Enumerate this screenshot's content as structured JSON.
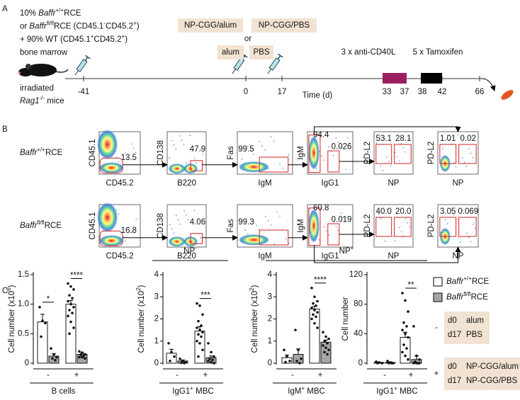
{
  "panel_a": {
    "label": "A",
    "donor_lines": [
      [
        {
          "t": "10% "
        },
        {
          "t": "Baffr",
          "i": true
        },
        {
          "t": "+/+",
          "sup": true
        },
        {
          "t": "RCE"
        }
      ],
      [
        {
          "t": "or "
        },
        {
          "t": "Baffr",
          "i": true
        },
        {
          "t": "fl/fl",
          "sup": true
        },
        {
          "t": "RCE (CD45.1"
        },
        {
          "t": "-",
          "sup": true
        },
        {
          "t": "CD45.2"
        },
        {
          "t": "+",
          "sup": true
        },
        {
          "t": ")"
        }
      ],
      [
        {
          "t": "+ 90% WT (CD45.1"
        },
        {
          "t": "+",
          "sup": true
        },
        {
          "t": "CD45.2"
        },
        {
          "t": "+",
          "sup": true
        },
        {
          "t": ")"
        }
      ],
      [
        {
          "t": "bone marrow"
        }
      ]
    ],
    "recipient_lines": [
      [
        {
          "t": "irradiated"
        }
      ],
      [
        {
          "t": "Rag1",
          "i": true
        },
        {
          "t": "-/-",
          "sup": true
        },
        {
          "t": " mice"
        }
      ]
    ],
    "immunizations": {
      "primary": [
        "NP-CGG/alum",
        "NP-CGG/PBS"
      ],
      "or": "or",
      "control": [
        "alum",
        "PBS"
      ]
    },
    "treatments": [
      "3 x anti-CD40L",
      "5 x Tamoxifen"
    ],
    "timeline": {
      "days": [
        -41,
        0,
        17,
        33,
        37,
        38,
        42,
        66
      ],
      "label": "Time (d)"
    }
  },
  "panel_b": {
    "label": "B",
    "rows": [
      {
        "name": [
          {
            "t": "Baffr",
            "i": true
          },
          {
            "t": "+/+",
            "sup": true
          },
          {
            "t": "RCE"
          }
        ],
        "plots": [
          {
            "y": "CD45.1",
            "x": "CD45.2",
            "gates": [
              "13.5"
            ]
          },
          {
            "y": "CD138",
            "x": "B220",
            "gates": [
              "47.9"
            ]
          },
          {
            "y": "Fas",
            "x": "IgM",
            "gates": [
              "99.5"
            ]
          },
          {
            "y": "IgM",
            "x": "IgG1",
            "gates": [
              "94.4",
              "0.026"
            ]
          },
          {
            "y": "PD-L2",
            "x": "NP",
            "gates": [
              "53.1",
              "28.1"
            ]
          },
          {
            "y": "PD-L2",
            "x": "NP",
            "gates": [
              "1.01",
              "0.02"
            ]
          }
        ]
      },
      {
        "name": [
          {
            "t": "Baffr",
            "i": true
          },
          {
            "t": "fl/fl",
            "sup": true
          },
          {
            "t": "RCE"
          }
        ],
        "plots": [
          {
            "y": "CD45.1",
            "x": "CD45.2",
            "gates": [
              "16.8"
            ]
          },
          {
            "y": "CD138",
            "x": "B220",
            "gates": [
              "4.06"
            ]
          },
          {
            "y": "Fas",
            "x": "IgM",
            "gates": [
              "99.3"
            ]
          },
          {
            "y": "IgM",
            "x": "IgG1",
            "gates": [
              "60.8",
              "0.019"
            ]
          },
          {
            "y": "PD-L2",
            "x": "NP",
            "gates": [
              "40.0",
              "20.0"
            ]
          },
          {
            "y": "PD-L2",
            "x": "NP",
            "gates": [
              "3.05",
              "0.069"
            ]
          }
        ]
      }
    ]
  },
  "panel_c": {
    "label": "C",
    "groups": [
      [
        {
          "t": "NP"
        },
        {
          "t": "-",
          "sup": true
        }
      ],
      [
        {
          "t": "NP"
        },
        {
          "t": "+",
          "sup": true
        }
      ]
    ],
    "legend": [
      {
        "label": [
          {
            "t": "Baffr",
            "i": true
          },
          {
            "t": "+/+",
            "sup": true
          },
          {
            "t": "RCE"
          }
        ],
        "color": "#ffffff"
      },
      {
        "label": [
          {
            "t": "Baffr",
            "i": true
          },
          {
            "t": "fl/fl",
            "sup": true
          },
          {
            "t": "RCE"
          }
        ],
        "color": "#a6a6a6"
      }
    ],
    "conditions": [
      {
        "sign": "-",
        "lines": [
          [
            "d0",
            "alum"
          ],
          [
            "d17",
            "PBS"
          ]
        ]
      },
      {
        "sign": "+",
        "lines": [
          [
            "d0",
            "NP-CGG/alum"
          ],
          [
            "d17",
            "NP-CGG/PBS"
          ]
        ]
      }
    ]
  },
  "chart_data": [
    {
      "type": "bar",
      "categories": [
        "-",
        "+"
      ],
      "xlabel": [
        {
          "t": "B cells"
        }
      ],
      "ylabel": [
        {
          "t": "Cell number (x10"
        },
        {
          "t": "6",
          "sup": true
        },
        {
          "t": ")"
        }
      ],
      "ylim": [
        0,
        1.5
      ],
      "yticks": [
        0,
        0.5,
        {
          "value": 1,
          "label": "1.0"
        },
        1.5
      ],
      "annotations": [
        "*",
        "****"
      ],
      "series": [
        {
          "color": "#ffffff",
          "values": [
            0.7,
            1.0
          ],
          "errors": [
            0.13,
            0.06
          ],
          "points": [
            [
              0.95,
              0.72,
              0.68,
              0.45
            ],
            [
              1.35,
              1.3,
              1.25,
              1.15,
              1.1,
              1.05,
              1.0,
              0.95,
              0.9,
              0.85,
              0.8,
              0.7,
              0.6,
              0.5
            ]
          ]
        },
        {
          "color": "#a6a6a6",
          "values": [
            0.12,
            0.15
          ],
          "errors": [
            0.04,
            0.02
          ],
          "points": [
            [
              0.25,
              0.15,
              0.1,
              0.08,
              0.05
            ],
            [
              0.2,
              0.18,
              0.15,
              0.14,
              0.12,
              0.1,
              0.1,
              0.08
            ]
          ]
        }
      ]
    },
    {
      "type": "bar",
      "categories": [
        "-",
        "+"
      ],
      "xlabel": [
        {
          "t": "IgG1"
        },
        {
          "t": "+",
          "sup": true
        },
        {
          "t": " MBC"
        }
      ],
      "ylabel": [
        {
          "t": "Cell number (x10"
        },
        {
          "t": "2",
          "sup": true
        },
        {
          "t": ")"
        }
      ],
      "ylim": [
        0,
        4
      ],
      "yticks": [
        0,
        1,
        2,
        3,
        4
      ],
      "annotations": [
        null,
        "***"
      ],
      "series": [
        {
          "color": "#ffffff",
          "values": [
            0.45,
            1.45
          ],
          "errors": [
            0.18,
            0.2
          ],
          "points": [
            [
              0.9,
              0.5,
              0.3,
              0.1
            ],
            [
              2.7,
              2.6,
              2.2,
              1.9,
              1.7,
              1.6,
              1.5,
              1.4,
              1.3,
              1.2,
              1.0,
              0.9,
              0.6,
              0.3
            ]
          ]
        },
        {
          "color": "#a6a6a6",
          "values": [
            0.1,
            0.25
          ],
          "errors": [
            0.05,
            0.08
          ],
          "points": [
            [
              0.2,
              0.1,
              0.05,
              0.02,
              0
            ],
            [
              0.9,
              0.5,
              0.3,
              0.2,
              0.15,
              0.1,
              0.05,
              0
            ]
          ]
        }
      ]
    },
    {
      "type": "bar",
      "categories": [
        "-",
        "+"
      ],
      "xlabel": [
        {
          "t": "IgM"
        },
        {
          "t": "+",
          "sup": true
        },
        {
          "t": " MBC"
        }
      ],
      "ylabel": [
        {
          "t": "Cell number (x10"
        },
        {
          "t": "2",
          "sup": true
        },
        {
          "t": ")"
        }
      ],
      "ylim": [
        0,
        4
      ],
      "yticks": [
        0,
        1,
        2,
        3,
        4
      ],
      "annotations": [
        null,
        "****"
      ],
      "series": [
        {
          "color": "#ffffff",
          "values": [
            0.25,
            2.45
          ],
          "errors": [
            0.12,
            0.12
          ],
          "points": [
            [
              0.6,
              0.3,
              0.1,
              0.05
            ],
            [
              3.4,
              3.0,
              2.8,
              2.7,
              2.6,
              2.5,
              2.4,
              2.3,
              2.2,
              2.1,
              2.0,
              1.8,
              1.6
            ]
          ]
        },
        {
          "color": "#a6a6a6",
          "values": [
            0.4,
            0.95
          ],
          "errors": [
            0.25,
            0.1
          ],
          "points": [
            [
              1.5,
              0.6,
              0.2,
              0.1,
              0
            ],
            [
              1.4,
              1.2,
              1.1,
              1.0,
              0.9,
              0.8,
              0.7,
              0.6,
              0.5,
              0.4
            ]
          ]
        }
      ]
    },
    {
      "type": "bar",
      "categories": [
        "-",
        "+"
      ],
      "xlabel": [
        {
          "t": "IgG1"
        },
        {
          "t": "+",
          "sup": true
        },
        {
          "t": " MBC"
        }
      ],
      "ylabel": [
        {
          "t": "Cell number"
        }
      ],
      "ylim": [
        0,
        120
      ],
      "yticks": [
        0,
        40,
        80,
        120
      ],
      "annotations": [
        null,
        "**"
      ],
      "series": [
        {
          "color": "#ffffff",
          "values": [
            1,
            35
          ],
          "errors": [
            0.5,
            7
          ],
          "points": [
            [
              2,
              1,
              0,
              0
            ],
            [
              95,
              85,
              70,
              55,
              50,
              45,
              40,
              35,
              25,
              20,
              15,
              10,
              5
            ]
          ]
        },
        {
          "color": "#a6a6a6",
          "values": [
            1,
            5
          ],
          "errors": [
            0.7,
            5
          ],
          "points": [
            [
              3,
              1,
              0,
              0,
              0
            ],
            [
              50,
              10,
              5,
              2,
              0,
              0,
              0,
              0
            ]
          ]
        }
      ]
    }
  ]
}
